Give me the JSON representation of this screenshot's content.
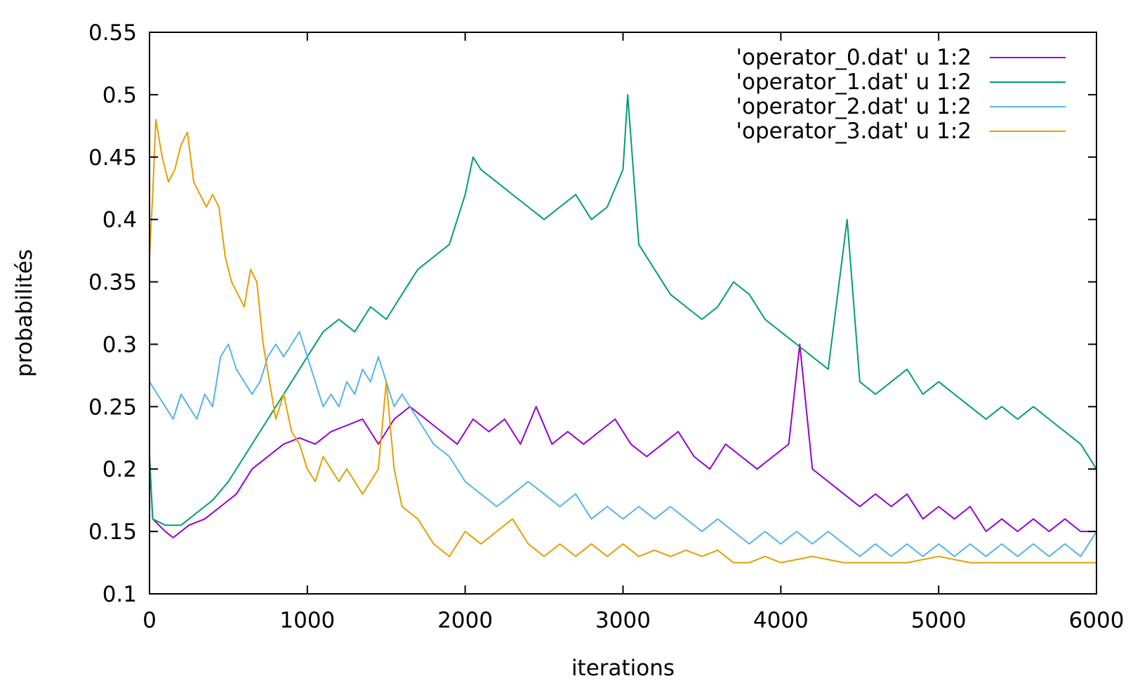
{
  "chart_data": {
    "type": "line",
    "xlabel": "iterations",
    "ylabel": "probabilités",
    "xlim": [
      0,
      6000
    ],
    "ylim": [
      0.1,
      0.55
    ],
    "xticks": [
      "0",
      "1000",
      "2000",
      "3000",
      "4000",
      "5000",
      "6000"
    ],
    "yticks": [
      "0.1",
      "0.15",
      "0.2",
      "0.25",
      "0.3",
      "0.35",
      "0.4",
      "0.45",
      "0.5",
      "0.55"
    ],
    "grid": false,
    "legend_position": "top-right",
    "series": [
      {
        "name": "'operator_0.dat' u 1:2",
        "color": "#9400d3",
        "points": [
          [
            0,
            0.21
          ],
          [
            20,
            0.16
          ],
          [
            100,
            0.15
          ],
          [
            150,
            0.145
          ],
          [
            250,
            0.155
          ],
          [
            350,
            0.16
          ],
          [
            450,
            0.17
          ],
          [
            550,
            0.18
          ],
          [
            650,
            0.2
          ],
          [
            750,
            0.21
          ],
          [
            850,
            0.22
          ],
          [
            950,
            0.225
          ],
          [
            1050,
            0.22
          ],
          [
            1150,
            0.23
          ],
          [
            1250,
            0.235
          ],
          [
            1350,
            0.24
          ],
          [
            1450,
            0.22
          ],
          [
            1550,
            0.24
          ],
          [
            1650,
            0.25
          ],
          [
            1750,
            0.24
          ],
          [
            1850,
            0.23
          ],
          [
            1950,
            0.22
          ],
          [
            2050,
            0.24
          ],
          [
            2150,
            0.23
          ],
          [
            2250,
            0.24
          ],
          [
            2350,
            0.22
          ],
          [
            2450,
            0.25
          ],
          [
            2550,
            0.22
          ],
          [
            2650,
            0.23
          ],
          [
            2750,
            0.22
          ],
          [
            2850,
            0.23
          ],
          [
            2950,
            0.24
          ],
          [
            3050,
            0.22
          ],
          [
            3150,
            0.21
          ],
          [
            3250,
            0.22
          ],
          [
            3350,
            0.23
          ],
          [
            3450,
            0.21
          ],
          [
            3550,
            0.2
          ],
          [
            3650,
            0.22
          ],
          [
            3750,
            0.21
          ],
          [
            3850,
            0.2
          ],
          [
            3950,
            0.21
          ],
          [
            4050,
            0.22
          ],
          [
            4120,
            0.3
          ],
          [
            4200,
            0.2
          ],
          [
            4300,
            0.19
          ],
          [
            4400,
            0.18
          ],
          [
            4500,
            0.17
          ],
          [
            4600,
            0.18
          ],
          [
            4700,
            0.17
          ],
          [
            4800,
            0.18
          ],
          [
            4900,
            0.16
          ],
          [
            5000,
            0.17
          ],
          [
            5100,
            0.16
          ],
          [
            5200,
            0.17
          ],
          [
            5300,
            0.15
          ],
          [
            5400,
            0.16
          ],
          [
            5500,
            0.15
          ],
          [
            5600,
            0.16
          ],
          [
            5700,
            0.15
          ],
          [
            5800,
            0.16
          ],
          [
            5900,
            0.15
          ],
          [
            6000,
            0.15
          ]
        ]
      },
      {
        "name": "'operator_1.dat' u 1:2",
        "color": "#009e73",
        "points": [
          [
            0,
            0.21
          ],
          [
            20,
            0.16
          ],
          [
            100,
            0.155
          ],
          [
            200,
            0.155
          ],
          [
            300,
            0.165
          ],
          [
            400,
            0.175
          ],
          [
            500,
            0.19
          ],
          [
            600,
            0.21
          ],
          [
            700,
            0.23
          ],
          [
            800,
            0.25
          ],
          [
            900,
            0.27
          ],
          [
            1000,
            0.29
          ],
          [
            1100,
            0.31
          ],
          [
            1200,
            0.32
          ],
          [
            1300,
            0.31
          ],
          [
            1400,
            0.33
          ],
          [
            1500,
            0.32
          ],
          [
            1600,
            0.34
          ],
          [
            1700,
            0.36
          ],
          [
            1800,
            0.37
          ],
          [
            1900,
            0.38
          ],
          [
            2000,
            0.42
          ],
          [
            2050,
            0.45
          ],
          [
            2100,
            0.44
          ],
          [
            2200,
            0.43
          ],
          [
            2300,
            0.42
          ],
          [
            2400,
            0.41
          ],
          [
            2500,
            0.4
          ],
          [
            2600,
            0.41
          ],
          [
            2700,
            0.42
          ],
          [
            2800,
            0.4
          ],
          [
            2900,
            0.41
          ],
          [
            3000,
            0.44
          ],
          [
            3030,
            0.5
          ],
          [
            3100,
            0.38
          ],
          [
            3200,
            0.36
          ],
          [
            3300,
            0.34
          ],
          [
            3400,
            0.33
          ],
          [
            3500,
            0.32
          ],
          [
            3600,
            0.33
          ],
          [
            3700,
            0.35
          ],
          [
            3800,
            0.34
          ],
          [
            3900,
            0.32
          ],
          [
            4000,
            0.31
          ],
          [
            4100,
            0.3
          ],
          [
            4200,
            0.29
          ],
          [
            4300,
            0.28
          ],
          [
            4420,
            0.4
          ],
          [
            4500,
            0.27
          ],
          [
            4600,
            0.26
          ],
          [
            4700,
            0.27
          ],
          [
            4800,
            0.28
          ],
          [
            4900,
            0.26
          ],
          [
            5000,
            0.27
          ],
          [
            5100,
            0.26
          ],
          [
            5200,
            0.25
          ],
          [
            5300,
            0.24
          ],
          [
            5400,
            0.25
          ],
          [
            5500,
            0.24
          ],
          [
            5600,
            0.25
          ],
          [
            5700,
            0.24
          ],
          [
            5800,
            0.23
          ],
          [
            5900,
            0.22
          ],
          [
            6000,
            0.2
          ]
        ]
      },
      {
        "name": "'operator_2.dat' u 1:2",
        "color": "#56b4e9",
        "points": [
          [
            0,
            0.27
          ],
          [
            50,
            0.26
          ],
          [
            100,
            0.25
          ],
          [
            150,
            0.24
          ],
          [
            200,
            0.26
          ],
          [
            250,
            0.25
          ],
          [
            300,
            0.24
          ],
          [
            350,
            0.26
          ],
          [
            400,
            0.25
          ],
          [
            450,
            0.29
          ],
          [
            500,
            0.3
          ],
          [
            550,
            0.28
          ],
          [
            600,
            0.27
          ],
          [
            650,
            0.26
          ],
          [
            700,
            0.27
          ],
          [
            750,
            0.29
          ],
          [
            800,
            0.3
          ],
          [
            850,
            0.29
          ],
          [
            900,
            0.3
          ],
          [
            950,
            0.31
          ],
          [
            1000,
            0.29
          ],
          [
            1050,
            0.27
          ],
          [
            1100,
            0.25
          ],
          [
            1150,
            0.26
          ],
          [
            1200,
            0.25
          ],
          [
            1250,
            0.27
          ],
          [
            1300,
            0.26
          ],
          [
            1350,
            0.28
          ],
          [
            1400,
            0.27
          ],
          [
            1450,
            0.29
          ],
          [
            1500,
            0.27
          ],
          [
            1550,
            0.25
          ],
          [
            1600,
            0.26
          ],
          [
            1700,
            0.24
          ],
          [
            1800,
            0.22
          ],
          [
            1900,
            0.21
          ],
          [
            2000,
            0.19
          ],
          [
            2100,
            0.18
          ],
          [
            2200,
            0.17
          ],
          [
            2300,
            0.18
          ],
          [
            2400,
            0.19
          ],
          [
            2500,
            0.18
          ],
          [
            2600,
            0.17
          ],
          [
            2700,
            0.18
          ],
          [
            2800,
            0.16
          ],
          [
            2900,
            0.17
          ],
          [
            3000,
            0.16
          ],
          [
            3100,
            0.17
          ],
          [
            3200,
            0.16
          ],
          [
            3300,
            0.17
          ],
          [
            3400,
            0.16
          ],
          [
            3500,
            0.15
          ],
          [
            3600,
            0.16
          ],
          [
            3700,
            0.15
          ],
          [
            3800,
            0.14
          ],
          [
            3900,
            0.15
          ],
          [
            4000,
            0.14
          ],
          [
            4100,
            0.15
          ],
          [
            4200,
            0.14
          ],
          [
            4300,
            0.15
          ],
          [
            4400,
            0.14
          ],
          [
            4500,
            0.13
          ],
          [
            4600,
            0.14
          ],
          [
            4700,
            0.13
          ],
          [
            4800,
            0.14
          ],
          [
            4900,
            0.13
          ],
          [
            5000,
            0.14
          ],
          [
            5100,
            0.13
          ],
          [
            5200,
            0.14
          ],
          [
            5300,
            0.13
          ],
          [
            5400,
            0.14
          ],
          [
            5500,
            0.13
          ],
          [
            5600,
            0.14
          ],
          [
            5700,
            0.13
          ],
          [
            5800,
            0.14
          ],
          [
            5900,
            0.13
          ],
          [
            6000,
            0.15
          ]
        ]
      },
      {
        "name": "'operator_3.dat' u 1:2",
        "color": "#e69f00",
        "points": [
          [
            0,
            0.37
          ],
          [
            20,
            0.42
          ],
          [
            40,
            0.48
          ],
          [
            80,
            0.45
          ],
          [
            120,
            0.43
          ],
          [
            160,
            0.44
          ],
          [
            200,
            0.46
          ],
          [
            240,
            0.47
          ],
          [
            280,
            0.43
          ],
          [
            320,
            0.42
          ],
          [
            360,
            0.41
          ],
          [
            400,
            0.42
          ],
          [
            440,
            0.41
          ],
          [
            480,
            0.37
          ],
          [
            520,
            0.35
          ],
          [
            560,
            0.34
          ],
          [
            600,
            0.33
          ],
          [
            640,
            0.36
          ],
          [
            680,
            0.35
          ],
          [
            720,
            0.3
          ],
          [
            760,
            0.27
          ],
          [
            800,
            0.24
          ],
          [
            850,
            0.26
          ],
          [
            900,
            0.23
          ],
          [
            950,
            0.22
          ],
          [
            1000,
            0.2
          ],
          [
            1050,
            0.19
          ],
          [
            1100,
            0.21
          ],
          [
            1150,
            0.2
          ],
          [
            1200,
            0.19
          ],
          [
            1250,
            0.2
          ],
          [
            1300,
            0.19
          ],
          [
            1350,
            0.18
          ],
          [
            1400,
            0.19
          ],
          [
            1450,
            0.2
          ],
          [
            1500,
            0.27
          ],
          [
            1550,
            0.2
          ],
          [
            1600,
            0.17
          ],
          [
            1700,
            0.16
          ],
          [
            1800,
            0.14
          ],
          [
            1900,
            0.13
          ],
          [
            2000,
            0.15
          ],
          [
            2100,
            0.14
          ],
          [
            2200,
            0.15
          ],
          [
            2300,
            0.16
          ],
          [
            2400,
            0.14
          ],
          [
            2500,
            0.13
          ],
          [
            2600,
            0.14
          ],
          [
            2700,
            0.13
          ],
          [
            2800,
            0.14
          ],
          [
            2900,
            0.13
          ],
          [
            3000,
            0.14
          ],
          [
            3100,
            0.13
          ],
          [
            3200,
            0.135
          ],
          [
            3300,
            0.13
          ],
          [
            3400,
            0.135
          ],
          [
            3500,
            0.13
          ],
          [
            3600,
            0.135
          ],
          [
            3700,
            0.125
          ],
          [
            3800,
            0.125
          ],
          [
            3900,
            0.13
          ],
          [
            4000,
            0.125
          ],
          [
            4200,
            0.13
          ],
          [
            4400,
            0.125
          ],
          [
            4600,
            0.125
          ],
          [
            4800,
            0.125
          ],
          [
            5000,
            0.13
          ],
          [
            5200,
            0.125
          ],
          [
            5400,
            0.125
          ],
          [
            5600,
            0.125
          ],
          [
            5800,
            0.125
          ],
          [
            6000,
            0.125
          ]
        ]
      }
    ]
  }
}
